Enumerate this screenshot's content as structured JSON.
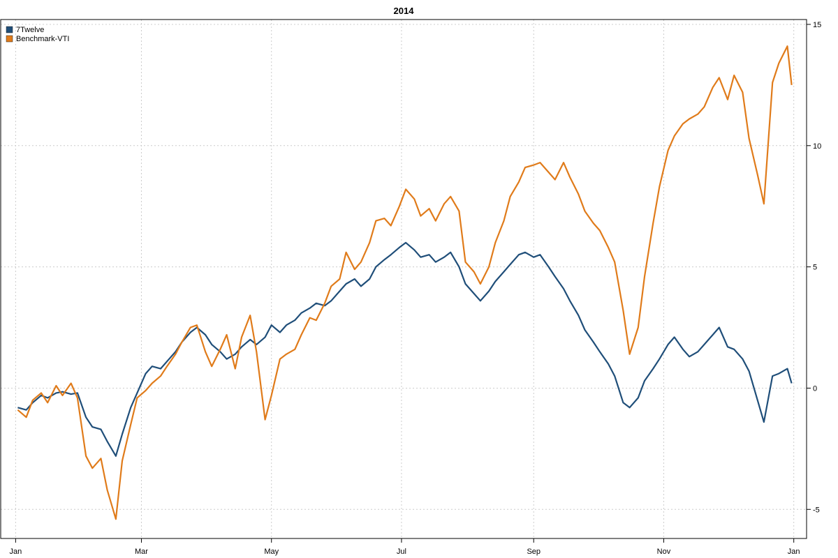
{
  "chart_data": {
    "type": "line",
    "title": "2014",
    "xlabel": "",
    "ylabel": "",
    "x_ticks": [
      "Jan",
      "Mar",
      "May",
      "Jul",
      "Sep",
      "Nov",
      "Jan"
    ],
    "y_ticks": [
      -5,
      0,
      5,
      10,
      15
    ],
    "ylim": [
      -6.2,
      15.2
    ],
    "grid": true,
    "legend_position": "top-left",
    "y_axis_side": "right",
    "series": [
      {
        "name": "7Twelve",
        "color": "#1F4E79",
        "points": [
          [
            "2014-01-02",
            -0.8
          ],
          [
            "2014-01-06",
            -0.9
          ],
          [
            "2014-01-09",
            -0.6
          ],
          [
            "2014-01-13",
            -0.3
          ],
          [
            "2014-01-16",
            -0.4
          ],
          [
            "2014-01-20",
            -0.2
          ],
          [
            "2014-01-23",
            -0.15
          ],
          [
            "2014-01-27",
            -0.25
          ],
          [
            "2014-01-30",
            -0.2
          ],
          [
            "2014-02-03",
            -1.2
          ],
          [
            "2014-02-06",
            -1.6
          ],
          [
            "2014-02-10",
            -1.7
          ],
          [
            "2014-02-13",
            -2.2
          ],
          [
            "2014-02-17",
            -2.8
          ],
          [
            "2014-02-20",
            -1.9
          ],
          [
            "2014-02-24",
            -0.8
          ],
          [
            "2014-02-27",
            -0.2
          ],
          [
            "2014-03-03",
            0.6
          ],
          [
            "2014-03-06",
            0.9
          ],
          [
            "2014-03-10",
            0.8
          ],
          [
            "2014-03-13",
            1.1
          ],
          [
            "2014-03-17",
            1.5
          ],
          [
            "2014-03-20",
            1.9
          ],
          [
            "2014-03-24",
            2.3
          ],
          [
            "2014-03-27",
            2.5
          ],
          [
            "2014-03-31",
            2.2
          ],
          [
            "2014-04-03",
            1.8
          ],
          [
            "2014-04-07",
            1.5
          ],
          [
            "2014-04-10",
            1.2
          ],
          [
            "2014-04-14",
            1.4
          ],
          [
            "2014-04-17",
            1.7
          ],
          [
            "2014-04-21",
            2.0
          ],
          [
            "2014-04-24",
            1.8
          ],
          [
            "2014-04-28",
            2.1
          ],
          [
            "2014-05-01",
            2.6
          ],
          [
            "2014-05-05",
            2.3
          ],
          [
            "2014-05-08",
            2.6
          ],
          [
            "2014-05-12",
            2.8
          ],
          [
            "2014-05-15",
            3.1
          ],
          [
            "2014-05-19",
            3.3
          ],
          [
            "2014-05-22",
            3.5
          ],
          [
            "2014-05-26",
            3.4
          ],
          [
            "2014-05-29",
            3.6
          ],
          [
            "2014-06-02",
            4.0
          ],
          [
            "2014-06-05",
            4.3
          ],
          [
            "2014-06-09",
            4.5
          ],
          [
            "2014-06-12",
            4.2
          ],
          [
            "2014-06-16",
            4.5
          ],
          [
            "2014-06-19",
            5.0
          ],
          [
            "2014-06-23",
            5.3
          ],
          [
            "2014-06-26",
            5.5
          ],
          [
            "2014-06-30",
            5.8
          ],
          [
            "2014-07-03",
            6.0
          ],
          [
            "2014-07-07",
            5.7
          ],
          [
            "2014-07-10",
            5.4
          ],
          [
            "2014-07-14",
            5.5
          ],
          [
            "2014-07-17",
            5.2
          ],
          [
            "2014-07-21",
            5.4
          ],
          [
            "2014-07-24",
            5.6
          ],
          [
            "2014-07-28",
            5.0
          ],
          [
            "2014-07-31",
            4.3
          ],
          [
            "2014-08-04",
            3.9
          ],
          [
            "2014-08-07",
            3.6
          ],
          [
            "2014-08-11",
            4.0
          ],
          [
            "2014-08-14",
            4.4
          ],
          [
            "2014-08-18",
            4.8
          ],
          [
            "2014-08-21",
            5.1
          ],
          [
            "2014-08-25",
            5.5
          ],
          [
            "2014-08-28",
            5.6
          ],
          [
            "2014-09-01",
            5.4
          ],
          [
            "2014-09-04",
            5.5
          ],
          [
            "2014-09-08",
            5.0
          ],
          [
            "2014-09-11",
            4.6
          ],
          [
            "2014-09-15",
            4.1
          ],
          [
            "2014-09-18",
            3.6
          ],
          [
            "2014-09-22",
            3.0
          ],
          [
            "2014-09-25",
            2.4
          ],
          [
            "2014-09-29",
            1.9
          ],
          [
            "2014-10-02",
            1.5
          ],
          [
            "2014-10-06",
            1.0
          ],
          [
            "2014-10-09",
            0.5
          ],
          [
            "2014-10-13",
            -0.6
          ],
          [
            "2014-10-16",
            -0.8
          ],
          [
            "2014-10-20",
            -0.4
          ],
          [
            "2014-10-23",
            0.3
          ],
          [
            "2014-10-27",
            0.8
          ],
          [
            "2014-10-30",
            1.2
          ],
          [
            "2014-11-03",
            1.8
          ],
          [
            "2014-11-06",
            2.1
          ],
          [
            "2014-11-10",
            1.6
          ],
          [
            "2014-11-13",
            1.3
          ],
          [
            "2014-11-17",
            1.5
          ],
          [
            "2014-11-20",
            1.8
          ],
          [
            "2014-11-24",
            2.2
          ],
          [
            "2014-11-27",
            2.5
          ],
          [
            "2014-12-01",
            1.7
          ],
          [
            "2014-12-04",
            1.6
          ],
          [
            "2014-12-08",
            1.2
          ],
          [
            "2014-12-11",
            0.7
          ],
          [
            "2014-12-15",
            -0.5
          ],
          [
            "2014-12-18",
            -1.4
          ],
          [
            "2014-12-22",
            0.5
          ],
          [
            "2014-12-25",
            0.6
          ],
          [
            "2014-12-29",
            0.8
          ],
          [
            "2014-12-31",
            0.2
          ]
        ]
      },
      {
        "name": "Benchmark-VTI",
        "color": "#E07B1A",
        "points": [
          [
            "2014-01-02",
            -0.9
          ],
          [
            "2014-01-06",
            -1.2
          ],
          [
            "2014-01-09",
            -0.5
          ],
          [
            "2014-01-13",
            -0.2
          ],
          [
            "2014-01-16",
            -0.6
          ],
          [
            "2014-01-20",
            0.1
          ],
          [
            "2014-01-23",
            -0.3
          ],
          [
            "2014-01-27",
            0.2
          ],
          [
            "2014-01-30",
            -0.4
          ],
          [
            "2014-02-03",
            -2.8
          ],
          [
            "2014-02-06",
            -3.3
          ],
          [
            "2014-02-10",
            -2.9
          ],
          [
            "2014-02-13",
            -4.2
          ],
          [
            "2014-02-17",
            -5.4
          ],
          [
            "2014-02-20",
            -3.0
          ],
          [
            "2014-02-24",
            -1.5
          ],
          [
            "2014-02-27",
            -0.4
          ],
          [
            "2014-03-03",
            -0.1
          ],
          [
            "2014-03-06",
            0.2
          ],
          [
            "2014-03-10",
            0.5
          ],
          [
            "2014-03-13",
            0.9
          ],
          [
            "2014-03-17",
            1.4
          ],
          [
            "2014-03-20",
            1.9
          ],
          [
            "2014-03-24",
            2.5
          ],
          [
            "2014-03-27",
            2.6
          ],
          [
            "2014-03-31",
            1.5
          ],
          [
            "2014-04-03",
            0.9
          ],
          [
            "2014-04-07",
            1.6
          ],
          [
            "2014-04-10",
            2.2
          ],
          [
            "2014-04-14",
            0.8
          ],
          [
            "2014-04-17",
            2.1
          ],
          [
            "2014-04-21",
            3.0
          ],
          [
            "2014-04-24",
            1.5
          ],
          [
            "2014-04-28",
            -1.3
          ],
          [
            "2014-05-01",
            -0.3
          ],
          [
            "2014-05-05",
            1.2
          ],
          [
            "2014-05-08",
            1.4
          ],
          [
            "2014-05-12",
            1.6
          ],
          [
            "2014-05-15",
            2.2
          ],
          [
            "2014-05-19",
            2.9
          ],
          [
            "2014-05-22",
            2.8
          ],
          [
            "2014-05-26",
            3.5
          ],
          [
            "2014-05-29",
            4.2
          ],
          [
            "2014-06-02",
            4.5
          ],
          [
            "2014-06-05",
            5.6
          ],
          [
            "2014-06-09",
            4.9
          ],
          [
            "2014-06-12",
            5.2
          ],
          [
            "2014-06-16",
            6.0
          ],
          [
            "2014-06-19",
            6.9
          ],
          [
            "2014-06-23",
            7.0
          ],
          [
            "2014-06-26",
            6.7
          ],
          [
            "2014-06-30",
            7.5
          ],
          [
            "2014-07-03",
            8.2
          ],
          [
            "2014-07-07",
            7.8
          ],
          [
            "2014-07-10",
            7.1
          ],
          [
            "2014-07-14",
            7.4
          ],
          [
            "2014-07-17",
            6.9
          ],
          [
            "2014-07-21",
            7.6
          ],
          [
            "2014-07-24",
            7.9
          ],
          [
            "2014-07-28",
            7.3
          ],
          [
            "2014-07-31",
            5.2
          ],
          [
            "2014-08-04",
            4.8
          ],
          [
            "2014-08-07",
            4.3
          ],
          [
            "2014-08-11",
            5.0
          ],
          [
            "2014-08-14",
            6.0
          ],
          [
            "2014-08-18",
            6.9
          ],
          [
            "2014-08-21",
            7.9
          ],
          [
            "2014-08-25",
            8.5
          ],
          [
            "2014-08-28",
            9.1
          ],
          [
            "2014-09-01",
            9.2
          ],
          [
            "2014-09-04",
            9.3
          ],
          [
            "2014-09-08",
            8.9
          ],
          [
            "2014-09-11",
            8.6
          ],
          [
            "2014-09-15",
            9.3
          ],
          [
            "2014-09-18",
            8.7
          ],
          [
            "2014-09-22",
            8.0
          ],
          [
            "2014-09-25",
            7.3
          ],
          [
            "2014-09-29",
            6.8
          ],
          [
            "2014-10-02",
            6.5
          ],
          [
            "2014-10-06",
            5.8
          ],
          [
            "2014-10-09",
            5.2
          ],
          [
            "2014-10-13",
            3.2
          ],
          [
            "2014-10-16",
            1.4
          ],
          [
            "2014-10-20",
            2.5
          ],
          [
            "2014-10-23",
            4.6
          ],
          [
            "2014-10-27",
            6.8
          ],
          [
            "2014-10-30",
            8.3
          ],
          [
            "2014-11-03",
            9.8
          ],
          [
            "2014-11-06",
            10.4
          ],
          [
            "2014-11-10",
            10.9
          ],
          [
            "2014-11-13",
            11.1
          ],
          [
            "2014-11-17",
            11.3
          ],
          [
            "2014-11-20",
            11.6
          ],
          [
            "2014-11-24",
            12.4
          ],
          [
            "2014-11-27",
            12.8
          ],
          [
            "2014-12-01",
            11.9
          ],
          [
            "2014-12-04",
            12.9
          ],
          [
            "2014-12-08",
            12.2
          ],
          [
            "2014-12-11",
            10.3
          ],
          [
            "2014-12-15",
            8.8
          ],
          [
            "2014-12-18",
            7.6
          ],
          [
            "2014-12-22",
            12.6
          ],
          [
            "2014-12-25",
            13.4
          ],
          [
            "2014-12-29",
            14.1
          ],
          [
            "2014-12-31",
            12.5
          ]
        ]
      }
    ]
  }
}
